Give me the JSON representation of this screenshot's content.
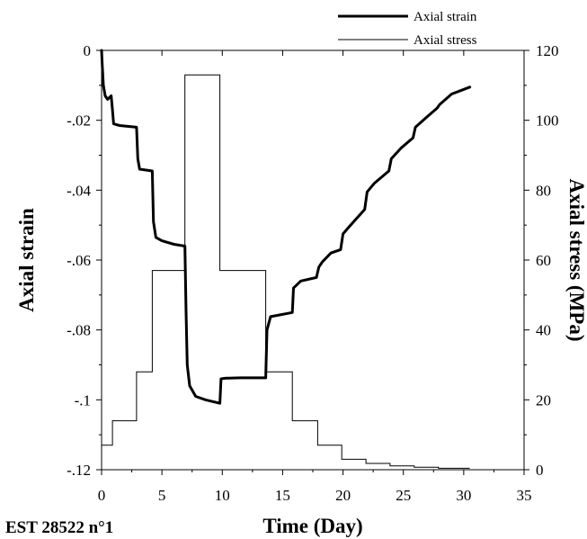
{
  "chart_data": {
    "type": "line",
    "xlabel": "Time (Day)",
    "ylabel_left": "Axial strain",
    "ylabel_right": "Axial stress (MPa)",
    "caption": "EST 28522 n°1",
    "xlim": [
      0,
      35
    ],
    "ylim_left": [
      -0.12,
      0
    ],
    "ylim_right": [
      0,
      120
    ],
    "x_ticks": [
      0,
      5,
      10,
      15,
      20,
      25,
      30,
      35
    ],
    "y_left_ticks": [
      0,
      -0.02,
      -0.04,
      -0.06,
      -0.08,
      -0.1,
      -0.12
    ],
    "y_right_ticks": [
      0,
      20,
      40,
      60,
      80,
      100,
      120
    ],
    "legend_position": "top-right",
    "grid": false,
    "series": [
      {
        "name": "Axial strain",
        "axis": "left",
        "color": "#000000",
        "line_width": "thick",
        "points": [
          [
            0,
            0
          ],
          [
            0.05,
            -0.004
          ],
          [
            0.15,
            -0.01
          ],
          [
            0.3,
            -0.013
          ],
          [
            0.5,
            -0.014
          ],
          [
            0.65,
            -0.0135
          ],
          [
            0.8,
            -0.013
          ],
          [
            0.9,
            -0.017
          ],
          [
            1.0,
            -0.021
          ],
          [
            1.5,
            -0.0215
          ],
          [
            2.9,
            -0.022
          ],
          [
            3.0,
            -0.031
          ],
          [
            3.15,
            -0.034
          ],
          [
            4.2,
            -0.0345
          ],
          [
            4.3,
            -0.049
          ],
          [
            4.5,
            -0.0535
          ],
          [
            5.0,
            -0.0545
          ],
          [
            6.0,
            -0.0555
          ],
          [
            6.9,
            -0.056
          ],
          [
            7.0,
            -0.075
          ],
          [
            7.1,
            -0.09
          ],
          [
            7.3,
            -0.096
          ],
          [
            7.8,
            -0.099
          ],
          [
            8.6,
            -0.1
          ],
          [
            9.8,
            -0.101
          ],
          [
            9.9,
            -0.094
          ],
          [
            10.3,
            -0.0938
          ],
          [
            11.5,
            -0.0937
          ],
          [
            13.6,
            -0.0937
          ],
          [
            13.7,
            -0.08
          ],
          [
            14.0,
            -0.0762
          ],
          [
            15.8,
            -0.075
          ],
          [
            15.9,
            -0.068
          ],
          [
            16.5,
            -0.066
          ],
          [
            17.8,
            -0.065
          ],
          [
            18.0,
            -0.062
          ],
          [
            18.3,
            -0.0605
          ],
          [
            19.0,
            -0.058
          ],
          [
            19.8,
            -0.057
          ],
          [
            20.0,
            -0.0525
          ],
          [
            20.5,
            -0.0505
          ],
          [
            21.8,
            -0.0455
          ],
          [
            22.0,
            -0.0405
          ],
          [
            22.6,
            -0.038
          ],
          [
            23.8,
            -0.0345
          ],
          [
            24.0,
            -0.031
          ],
          [
            24.8,
            -0.028
          ],
          [
            25.8,
            -0.025
          ],
          [
            26.0,
            -0.022
          ],
          [
            26.8,
            -0.0195
          ],
          [
            27.8,
            -0.0165
          ],
          [
            28.0,
            -0.0155
          ],
          [
            29.0,
            -0.0125
          ],
          [
            30.5,
            -0.0105
          ]
        ]
      },
      {
        "name": "Axial stress",
        "axis": "right",
        "color": "#000000",
        "line_width": "thin",
        "step_points": [
          [
            0,
            0
          ],
          [
            0,
            7
          ],
          [
            0.9,
            7
          ],
          [
            0.9,
            14
          ],
          [
            2.9,
            14
          ],
          [
            2.9,
            28
          ],
          [
            4.2,
            28
          ],
          [
            4.2,
            57
          ],
          [
            6.9,
            57
          ],
          [
            6.9,
            113
          ],
          [
            9.8,
            113
          ],
          [
            9.8,
            57
          ],
          [
            13.6,
            57
          ],
          [
            13.6,
            28
          ],
          [
            15.8,
            28
          ],
          [
            15.8,
            14
          ],
          [
            17.9,
            14
          ],
          [
            17.9,
            7
          ],
          [
            19.9,
            7
          ],
          [
            19.9,
            3
          ],
          [
            21.9,
            3
          ],
          [
            21.9,
            1.8
          ],
          [
            23.9,
            1.8
          ],
          [
            23.9,
            1.1
          ],
          [
            25.9,
            1.1
          ],
          [
            25.9,
            0.7
          ],
          [
            27.9,
            0.7
          ],
          [
            27.9,
            0.4
          ],
          [
            30.5,
            0.4
          ]
        ]
      }
    ]
  }
}
